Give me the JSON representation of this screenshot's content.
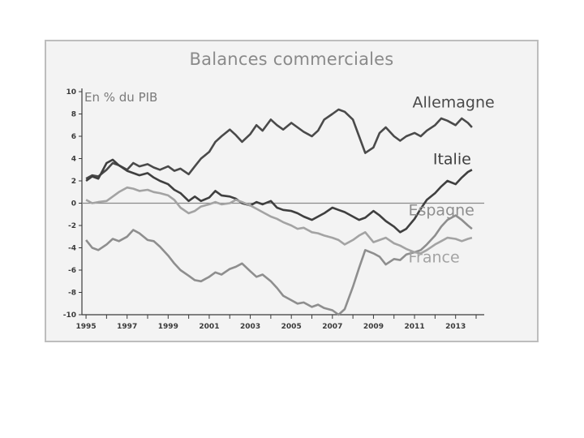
{
  "chart_data": {
    "type": "line",
    "title": "Balances commerciales",
    "ylabel": "En % du PIB",
    "xlabel": "",
    "ylim": [
      -10,
      10
    ],
    "xlim": [
      1994.8,
      2014.0
    ],
    "yticks": [
      10,
      8,
      6,
      4,
      2,
      0,
      -2,
      -4,
      -6,
      -8,
      -10
    ],
    "xticks": [
      "1995",
      "1997",
      "1999",
      "2001",
      "2003",
      "2005",
      "2007",
      "2009",
      "2011",
      "2013"
    ],
    "grid": false,
    "zero_line": true,
    "series": [
      {
        "name": "Allemagne",
        "color": "#4a4a4a",
        "points": [
          [
            1995.0,
            2.2
          ],
          [
            1995.3,
            2.5
          ],
          [
            1995.6,
            2.4
          ],
          [
            1996.0,
            3.0
          ],
          [
            1996.3,
            3.6
          ],
          [
            1996.6,
            3.4
          ],
          [
            1997.0,
            3.0
          ],
          [
            1997.3,
            3.6
          ],
          [
            1997.6,
            3.3
          ],
          [
            1998.0,
            3.5
          ],
          [
            1998.3,
            3.2
          ],
          [
            1998.6,
            3.0
          ],
          [
            1999.0,
            3.3
          ],
          [
            1999.3,
            2.9
          ],
          [
            1999.6,
            3.1
          ],
          [
            2000.0,
            2.6
          ],
          [
            2000.3,
            3.3
          ],
          [
            2000.6,
            4.0
          ],
          [
            2001.0,
            4.6
          ],
          [
            2001.3,
            5.5
          ],
          [
            2001.6,
            6.0
          ],
          [
            2002.0,
            6.6
          ],
          [
            2002.3,
            6.1
          ],
          [
            2002.6,
            5.5
          ],
          [
            2003.0,
            6.2
          ],
          [
            2003.3,
            7.0
          ],
          [
            2003.6,
            6.5
          ],
          [
            2004.0,
            7.5
          ],
          [
            2004.3,
            7.0
          ],
          [
            2004.6,
            6.6
          ],
          [
            2005.0,
            7.2
          ],
          [
            2005.3,
            6.8
          ],
          [
            2005.6,
            6.4
          ],
          [
            2006.0,
            6.0
          ],
          [
            2006.3,
            6.5
          ],
          [
            2006.6,
            7.5
          ],
          [
            2007.0,
            8.0
          ],
          [
            2007.3,
            8.4
          ],
          [
            2007.6,
            8.2
          ],
          [
            2008.0,
            7.5
          ],
          [
            2008.3,
            6.0
          ],
          [
            2008.6,
            4.5
          ],
          [
            2009.0,
            5.0
          ],
          [
            2009.3,
            6.3
          ],
          [
            2009.6,
            6.8
          ],
          [
            2010.0,
            6.0
          ],
          [
            2010.3,
            5.6
          ],
          [
            2010.6,
            6.0
          ],
          [
            2011.0,
            6.3
          ],
          [
            2011.3,
            6.0
          ],
          [
            2011.6,
            6.5
          ],
          [
            2012.0,
            7.0
          ],
          [
            2012.3,
            7.6
          ],
          [
            2012.6,
            7.4
          ],
          [
            2013.0,
            7.0
          ],
          [
            2013.3,
            7.6
          ],
          [
            2013.6,
            7.2
          ],
          [
            2013.8,
            6.8
          ]
        ]
      },
      {
        "name": "Italie",
        "color": "#3f3f3f",
        "points": [
          [
            1995.0,
            2.0
          ],
          [
            1995.3,
            2.4
          ],
          [
            1995.6,
            2.2
          ],
          [
            1996.0,
            3.6
          ],
          [
            1996.3,
            3.9
          ],
          [
            1996.6,
            3.4
          ],
          [
            1997.0,
            2.9
          ],
          [
            1997.3,
            2.7
          ],
          [
            1997.6,
            2.5
          ],
          [
            1998.0,
            2.7
          ],
          [
            1998.3,
            2.3
          ],
          [
            1998.6,
            2.0
          ],
          [
            1999.0,
            1.7
          ],
          [
            1999.3,
            1.2
          ],
          [
            1999.6,
            0.9
          ],
          [
            2000.0,
            0.2
          ],
          [
            2000.3,
            0.6
          ],
          [
            2000.6,
            0.2
          ],
          [
            2001.0,
            0.5
          ],
          [
            2001.3,
            1.1
          ],
          [
            2001.6,
            0.7
          ],
          [
            2002.0,
            0.6
          ],
          [
            2002.3,
            0.4
          ],
          [
            2002.6,
            0.0
          ],
          [
            2003.0,
            -0.2
          ],
          [
            2003.3,
            0.1
          ],
          [
            2003.6,
            -0.1
          ],
          [
            2004.0,
            0.2
          ],
          [
            2004.3,
            -0.4
          ],
          [
            2004.6,
            -0.6
          ],
          [
            2005.0,
            -0.7
          ],
          [
            2005.3,
            -0.9
          ],
          [
            2005.6,
            -1.2
          ],
          [
            2006.0,
            -1.5
          ],
          [
            2006.3,
            -1.2
          ],
          [
            2006.6,
            -0.9
          ],
          [
            2007.0,
            -0.4
          ],
          [
            2007.3,
            -0.6
          ],
          [
            2007.6,
            -0.8
          ],
          [
            2008.0,
            -1.2
          ],
          [
            2008.3,
            -1.5
          ],
          [
            2008.6,
            -1.3
          ],
          [
            2009.0,
            -0.7
          ],
          [
            2009.3,
            -1.1
          ],
          [
            2009.6,
            -1.6
          ],
          [
            2010.0,
            -2.1
          ],
          [
            2010.3,
            -2.6
          ],
          [
            2010.6,
            -2.3
          ],
          [
            2011.0,
            -1.4
          ],
          [
            2011.3,
            -0.5
          ],
          [
            2011.6,
            0.3
          ],
          [
            2012.0,
            0.9
          ],
          [
            2012.3,
            1.5
          ],
          [
            2012.6,
            2.0
          ],
          [
            2013.0,
            1.7
          ],
          [
            2013.3,
            2.3
          ],
          [
            2013.6,
            2.8
          ],
          [
            2013.8,
            3.0
          ]
        ]
      },
      {
        "name": "Espagne",
        "color": "#8e8e8e",
        "points": [
          [
            1995.0,
            -3.3
          ],
          [
            1995.3,
            -4.0
          ],
          [
            1995.6,
            -4.2
          ],
          [
            1996.0,
            -3.7
          ],
          [
            1996.3,
            -3.2
          ],
          [
            1996.6,
            -3.4
          ],
          [
            1997.0,
            -3.0
          ],
          [
            1997.3,
            -2.4
          ],
          [
            1997.6,
            -2.7
          ],
          [
            1998.0,
            -3.3
          ],
          [
            1998.3,
            -3.4
          ],
          [
            1998.6,
            -3.9
          ],
          [
            1999.0,
            -4.7
          ],
          [
            1999.3,
            -5.4
          ],
          [
            1999.6,
            -6.0
          ],
          [
            2000.0,
            -6.5
          ],
          [
            2000.3,
            -6.9
          ],
          [
            2000.6,
            -7.0
          ],
          [
            2001.0,
            -6.6
          ],
          [
            2001.3,
            -6.2
          ],
          [
            2001.6,
            -6.4
          ],
          [
            2002.0,
            -5.9
          ],
          [
            2002.3,
            -5.7
          ],
          [
            2002.6,
            -5.4
          ],
          [
            2003.0,
            -6.1
          ],
          [
            2003.3,
            -6.6
          ],
          [
            2003.6,
            -6.4
          ],
          [
            2004.0,
            -7.0
          ],
          [
            2004.3,
            -7.6
          ],
          [
            2004.6,
            -8.3
          ],
          [
            2005.0,
            -8.7
          ],
          [
            2005.3,
            -9.0
          ],
          [
            2005.6,
            -8.9
          ],
          [
            2006.0,
            -9.3
          ],
          [
            2006.3,
            -9.1
          ],
          [
            2006.6,
            -9.4
          ],
          [
            2007.0,
            -9.6
          ],
          [
            2007.3,
            -10.0
          ],
          [
            2007.6,
            -9.5
          ],
          [
            2008.0,
            -7.5
          ],
          [
            2008.3,
            -5.8
          ],
          [
            2008.6,
            -4.2
          ],
          [
            2009.0,
            -4.5
          ],
          [
            2009.3,
            -4.8
          ],
          [
            2009.6,
            -5.5
          ],
          [
            2010.0,
            -5.0
          ],
          [
            2010.3,
            -5.1
          ],
          [
            2010.6,
            -4.6
          ],
          [
            2011.0,
            -4.4
          ],
          [
            2011.3,
            -4.2
          ],
          [
            2011.6,
            -3.7
          ],
          [
            2012.0,
            -2.9
          ],
          [
            2012.3,
            -2.1
          ],
          [
            2012.6,
            -1.5
          ],
          [
            2013.0,
            -1.1
          ],
          [
            2013.3,
            -1.5
          ],
          [
            2013.6,
            -2.0
          ],
          [
            2013.8,
            -2.3
          ]
        ]
      },
      {
        "name": "France",
        "color": "#a3a3a3",
        "points": [
          [
            1995.0,
            0.3
          ],
          [
            1995.3,
            0.0
          ],
          [
            1995.6,
            0.1
          ],
          [
            1996.0,
            0.2
          ],
          [
            1996.3,
            0.6
          ],
          [
            1996.6,
            1.0
          ],
          [
            1997.0,
            1.4
          ],
          [
            1997.3,
            1.3
          ],
          [
            1997.6,
            1.1
          ],
          [
            1998.0,
            1.2
          ],
          [
            1998.3,
            1.0
          ],
          [
            1998.6,
            0.9
          ],
          [
            1999.0,
            0.7
          ],
          [
            1999.3,
            0.3
          ],
          [
            1999.6,
            -0.4
          ],
          [
            2000.0,
            -0.9
          ],
          [
            2000.3,
            -0.7
          ],
          [
            2000.6,
            -0.3
          ],
          [
            2001.0,
            -0.1
          ],
          [
            2001.3,
            0.1
          ],
          [
            2001.6,
            -0.1
          ],
          [
            2002.0,
            0.0
          ],
          [
            2002.3,
            0.3
          ],
          [
            2002.6,
            0.1
          ],
          [
            2003.0,
            -0.2
          ],
          [
            2003.3,
            -0.5
          ],
          [
            2003.6,
            -0.8
          ],
          [
            2004.0,
            -1.2
          ],
          [
            2004.3,
            -1.4
          ],
          [
            2004.6,
            -1.7
          ],
          [
            2005.0,
            -2.0
          ],
          [
            2005.3,
            -2.3
          ],
          [
            2005.6,
            -2.2
          ],
          [
            2006.0,
            -2.6
          ],
          [
            2006.3,
            -2.7
          ],
          [
            2006.6,
            -2.9
          ],
          [
            2007.0,
            -3.1
          ],
          [
            2007.3,
            -3.3
          ],
          [
            2007.6,
            -3.7
          ],
          [
            2008.0,
            -3.3
          ],
          [
            2008.3,
            -2.9
          ],
          [
            2008.6,
            -2.6
          ],
          [
            2009.0,
            -3.5
          ],
          [
            2009.3,
            -3.3
          ],
          [
            2009.6,
            -3.1
          ],
          [
            2010.0,
            -3.6
          ],
          [
            2010.3,
            -3.8
          ],
          [
            2010.6,
            -4.1
          ],
          [
            2011.0,
            -4.4
          ],
          [
            2011.3,
            -4.5
          ],
          [
            2011.6,
            -4.2
          ],
          [
            2012.0,
            -3.7
          ],
          [
            2012.3,
            -3.4
          ],
          [
            2012.6,
            -3.1
          ],
          [
            2013.0,
            -3.2
          ],
          [
            2013.3,
            -3.4
          ],
          [
            2013.6,
            -3.2
          ],
          [
            2013.8,
            -3.1
          ]
        ]
      }
    ],
    "annotations": [
      {
        "text": "Allemagne",
        "x": 2010.9,
        "y": 8.6,
        "color": "#4a4a4a"
      },
      {
        "text": "Italie",
        "x": 2011.9,
        "y": 3.5,
        "color": "#3f3f3f"
      },
      {
        "text": "Espagne",
        "x": 2010.7,
        "y": -1.1,
        "color": "#8e8e8e"
      },
      {
        "text": "France",
        "x": 2010.7,
        "y": -5.3,
        "color": "#a3a3a3"
      }
    ]
  },
  "colors": {
    "frame_border": "#bdbdbd",
    "background": "#f3f3f3",
    "title": "#8a8a8a",
    "axis": "#3a3a3a"
  }
}
